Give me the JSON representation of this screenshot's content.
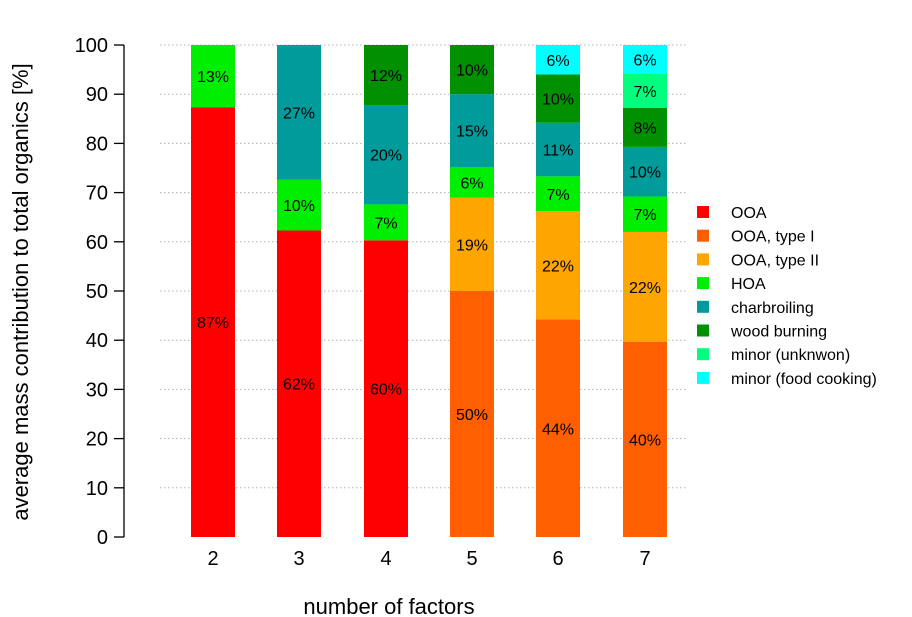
{
  "chart_data": {
    "type": "bar",
    "stacked": true,
    "xlabel": "number of factors",
    "ylabel": "average mass contribution to total organics [%]",
    "ylim": [
      0,
      100
    ],
    "yticks": [
      0,
      10,
      20,
      30,
      40,
      50,
      60,
      70,
      80,
      90,
      100
    ],
    "grid": "horizontal dotted",
    "legend_position": "right",
    "categories": [
      "2",
      "3",
      "4",
      "5",
      "6",
      "7"
    ],
    "series": [
      {
        "name": "OOA",
        "color": "#ff0000",
        "values": [
          87.3,
          62.3,
          60.3,
          null,
          null,
          null
        ],
        "labels": [
          "87%",
          "62%",
          "60%",
          "",
          "",
          ""
        ]
      },
      {
        "name": "OOA, type I",
        "color": "#ff5f00",
        "values": [
          null,
          null,
          null,
          50,
          44.2,
          39.7
        ],
        "labels": [
          "",
          "",
          "",
          "50%",
          "44%",
          "40%"
        ]
      },
      {
        "name": "OOA, type II",
        "color": "#ffa500",
        "values": [
          null,
          null,
          null,
          19,
          22,
          22.3
        ],
        "labels": [
          "",
          "",
          "",
          "19%",
          "22%",
          "22%"
        ]
      },
      {
        "name": "HOA",
        "color": "#00ee00",
        "values": [
          12.7,
          10.3,
          7.3,
          6.2,
          7.1,
          7.2
        ],
        "labels": [
          "13%",
          "10%",
          "7%",
          "6%",
          "7%",
          "7%"
        ]
      },
      {
        "name": "charbroiling",
        "color": "#009b9b",
        "values": [
          null,
          27.4,
          20.2,
          14.8,
          10.9,
          10.1
        ],
        "labels": [
          "",
          "27%",
          "20%",
          "15%",
          "11%",
          "10%"
        ]
      },
      {
        "name": "wood burning",
        "color": "#009000",
        "values": [
          null,
          null,
          12.2,
          10,
          9.8,
          7.9
        ],
        "labels": [
          "",
          "",
          "12%",
          "10%",
          "10%",
          "8%"
        ]
      },
      {
        "name": "minor (unknwon)",
        "color": "#00ff7f",
        "values": [
          null,
          null,
          null,
          null,
          null,
          6.9
        ],
        "labels": [
          "",
          "",
          "",
          "",
          "",
          "7%"
        ]
      },
      {
        "name": "minor (food cooking)",
        "color": "#00ffff",
        "values": [
          null,
          null,
          null,
          null,
          6,
          5.9
        ],
        "labels": [
          "",
          "",
          "",
          "",
          "6%",
          "6%"
        ]
      }
    ]
  }
}
